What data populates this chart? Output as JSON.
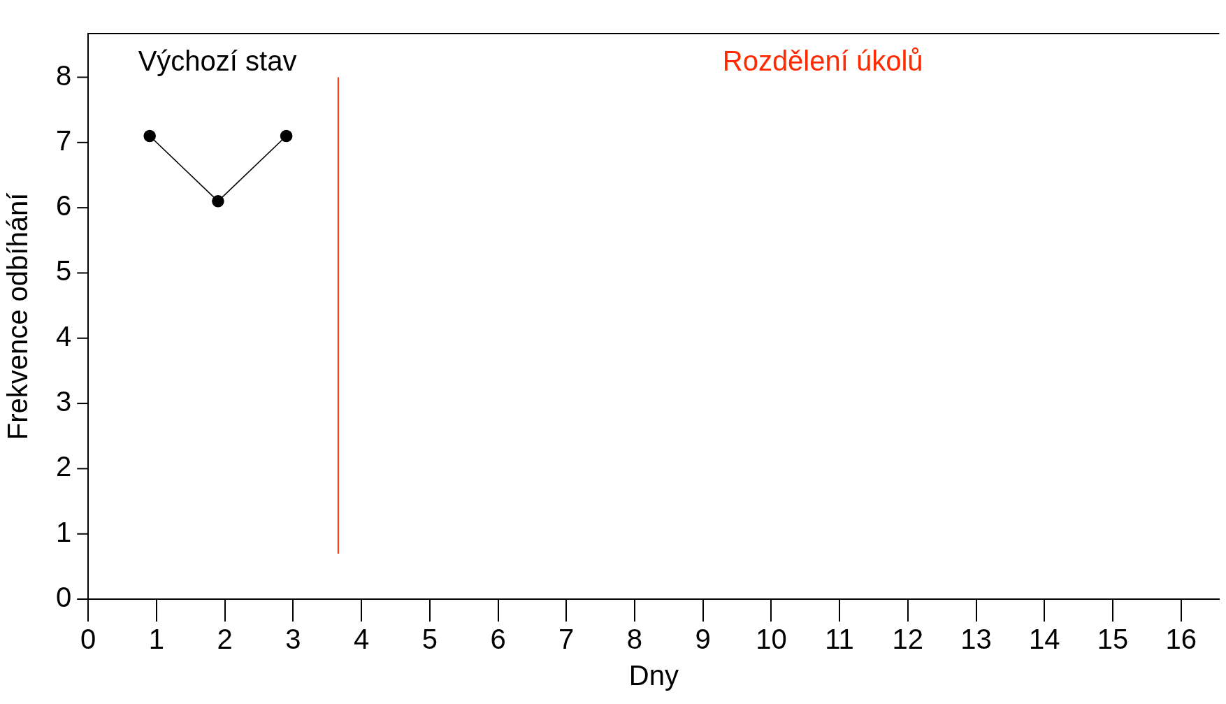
{
  "chart_data": {
    "type": "line",
    "xlabel": "Dny",
    "ylabel": "Frekvence odbíhání",
    "x": [
      0.9,
      1.9,
      2.9
    ],
    "series": [
      {
        "color": "#000000",
        "values": [
          7.1,
          6.1,
          7.1
        ]
      }
    ],
    "xlim": [
      0,
      16.56
    ],
    "xticks": [
      0,
      1,
      2,
      3,
      4,
      5,
      6,
      7,
      8,
      9,
      10,
      11,
      12,
      13,
      14,
      15,
      16
    ],
    "ylim": [
      0,
      8.67
    ],
    "yticks": [
      0,
      1,
      2,
      3,
      4,
      5,
      6,
      7,
      8
    ],
    "ref_lines": [
      {
        "axis": "x",
        "value": 3.66,
        "label": "Rozdělení úkolů",
        "color": "#ff2a00"
      }
    ],
    "annotations": [
      "Výchozí stav"
    ],
    "grid": false,
    "legend": false,
    "marker": "circle",
    "line_style": "solid"
  }
}
